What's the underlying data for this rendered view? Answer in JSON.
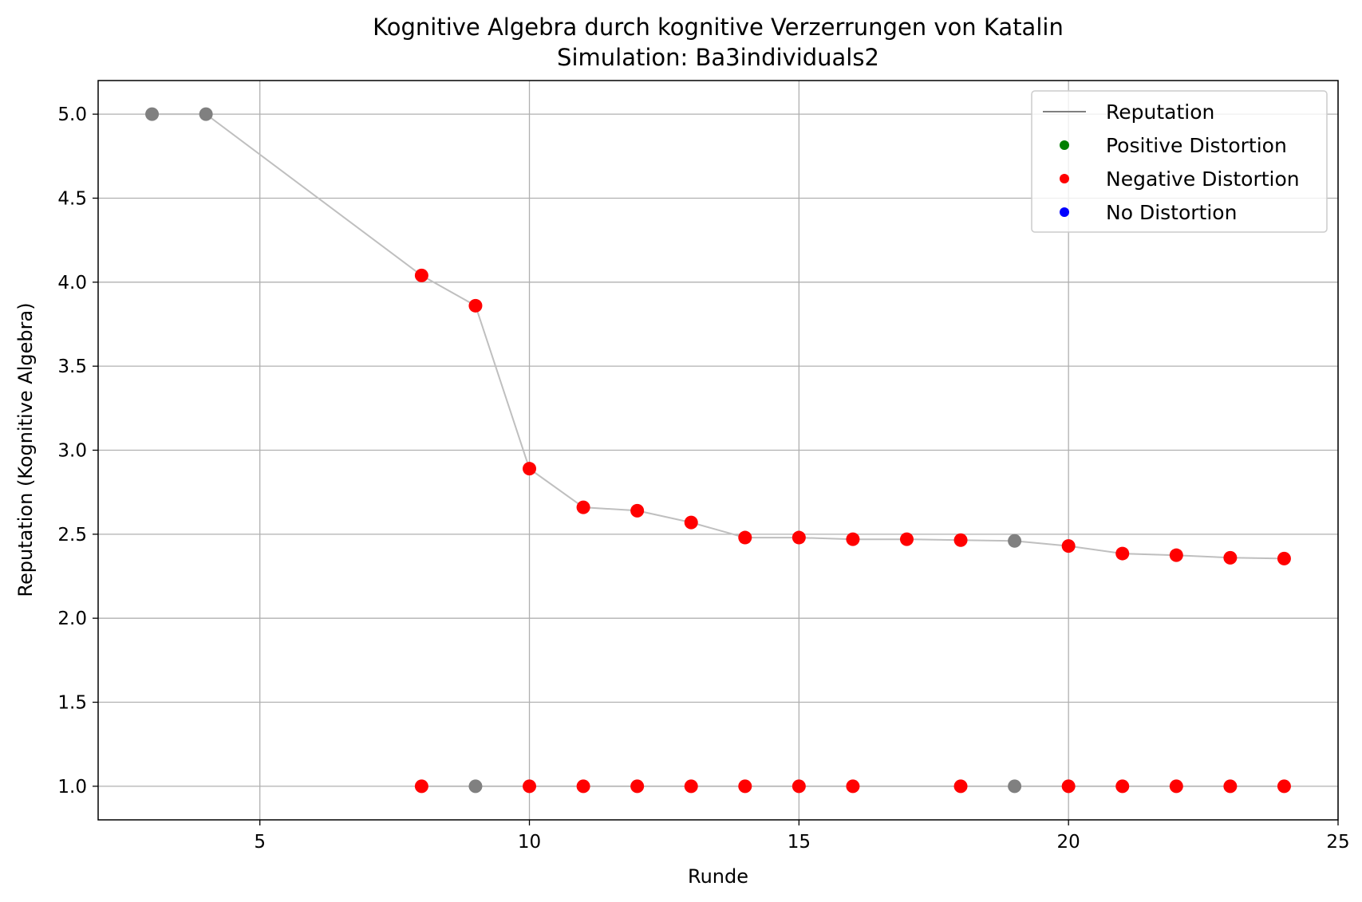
{
  "chart_data": {
    "type": "scatter",
    "title": "Kognitive Algebra durch kognitive Verzerrungen von Katalin",
    "subtitle": "Simulation: Ba3individuals2",
    "xlabel": "Runde",
    "ylabel": "Reputation (Kognitive Algebra)",
    "xlim": [
      2,
      25
    ],
    "ylim": [
      0.8,
      5.2
    ],
    "xticks": [
      5,
      10,
      15,
      20,
      25
    ],
    "yticks": [
      1.0,
      1.5,
      2.0,
      2.5,
      3.0,
      3.5,
      4.0,
      4.5,
      5.0
    ],
    "grid": true,
    "legend_position": "top-right",
    "legend": [
      {
        "label": "Reputation",
        "kind": "line",
        "color": "#808080"
      },
      {
        "label": "Positive Distortion",
        "kind": "marker",
        "color": "#008000"
      },
      {
        "label": "Negative Distortion",
        "kind": "marker",
        "color": "#ff0000"
      },
      {
        "label": "No Distortion",
        "kind": "marker",
        "color": "#0000ff"
      }
    ],
    "series": [
      {
        "name": "Reputation",
        "line_color": "#bfbfbf",
        "points": [
          {
            "x": 3,
            "y": 5.0,
            "color": "#808080"
          },
          {
            "x": 4,
            "y": 5.0,
            "color": "#808080"
          },
          {
            "x": 8,
            "y": 4.04,
            "color": "#ff0000"
          },
          {
            "x": 9,
            "y": 3.86,
            "color": "#ff0000"
          },
          {
            "x": 10,
            "y": 2.89,
            "color": "#ff0000"
          },
          {
            "x": 11,
            "y": 2.66,
            "color": "#ff0000"
          },
          {
            "x": 12,
            "y": 2.64,
            "color": "#ff0000"
          },
          {
            "x": 13,
            "y": 2.57,
            "color": "#ff0000"
          },
          {
            "x": 14,
            "y": 2.48,
            "color": "#ff0000"
          },
          {
            "x": 15,
            "y": 2.48,
            "color": "#ff0000"
          },
          {
            "x": 16,
            "y": 2.47,
            "color": "#ff0000"
          },
          {
            "x": 17,
            "y": 2.47,
            "color": "#ff0000"
          },
          {
            "x": 18,
            "y": 2.465,
            "color": "#ff0000"
          },
          {
            "x": 19,
            "y": 2.46,
            "color": "#808080"
          },
          {
            "x": 20,
            "y": 2.43,
            "color": "#ff0000"
          },
          {
            "x": 21,
            "y": 2.385,
            "color": "#ff0000"
          },
          {
            "x": 22,
            "y": 2.375,
            "color": "#ff0000"
          },
          {
            "x": 23,
            "y": 2.36,
            "color": "#ff0000"
          },
          {
            "x": 24,
            "y": 2.355,
            "color": "#ff0000"
          }
        ]
      },
      {
        "name": "",
        "line_color": "#bfbfbf",
        "points": [
          {
            "x": 8,
            "y": 1.0,
            "color": "#ff0000"
          },
          {
            "x": 9,
            "y": 1.0,
            "color": "#808080"
          },
          {
            "x": 10,
            "y": 1.0,
            "color": "#ff0000"
          },
          {
            "x": 11,
            "y": 1.0,
            "color": "#ff0000"
          },
          {
            "x": 12,
            "y": 1.0,
            "color": "#ff0000"
          },
          {
            "x": 13,
            "y": 1.0,
            "color": "#ff0000"
          },
          {
            "x": 14,
            "y": 1.0,
            "color": "#ff0000"
          },
          {
            "x": 15,
            "y": 1.0,
            "color": "#ff0000"
          },
          {
            "x": 16,
            "y": 1.0,
            "color": "#ff0000"
          },
          {
            "x": 18,
            "y": 1.0,
            "color": "#ff0000"
          },
          {
            "x": 19,
            "y": 1.0,
            "color": "#808080"
          },
          {
            "x": 20,
            "y": 1.0,
            "color": "#ff0000"
          },
          {
            "x": 21,
            "y": 1.0,
            "color": "#ff0000"
          },
          {
            "x": 22,
            "y": 1.0,
            "color": "#ff0000"
          },
          {
            "x": 23,
            "y": 1.0,
            "color": "#ff0000"
          },
          {
            "x": 24,
            "y": 1.0,
            "color": "#ff0000"
          }
        ]
      }
    ]
  }
}
